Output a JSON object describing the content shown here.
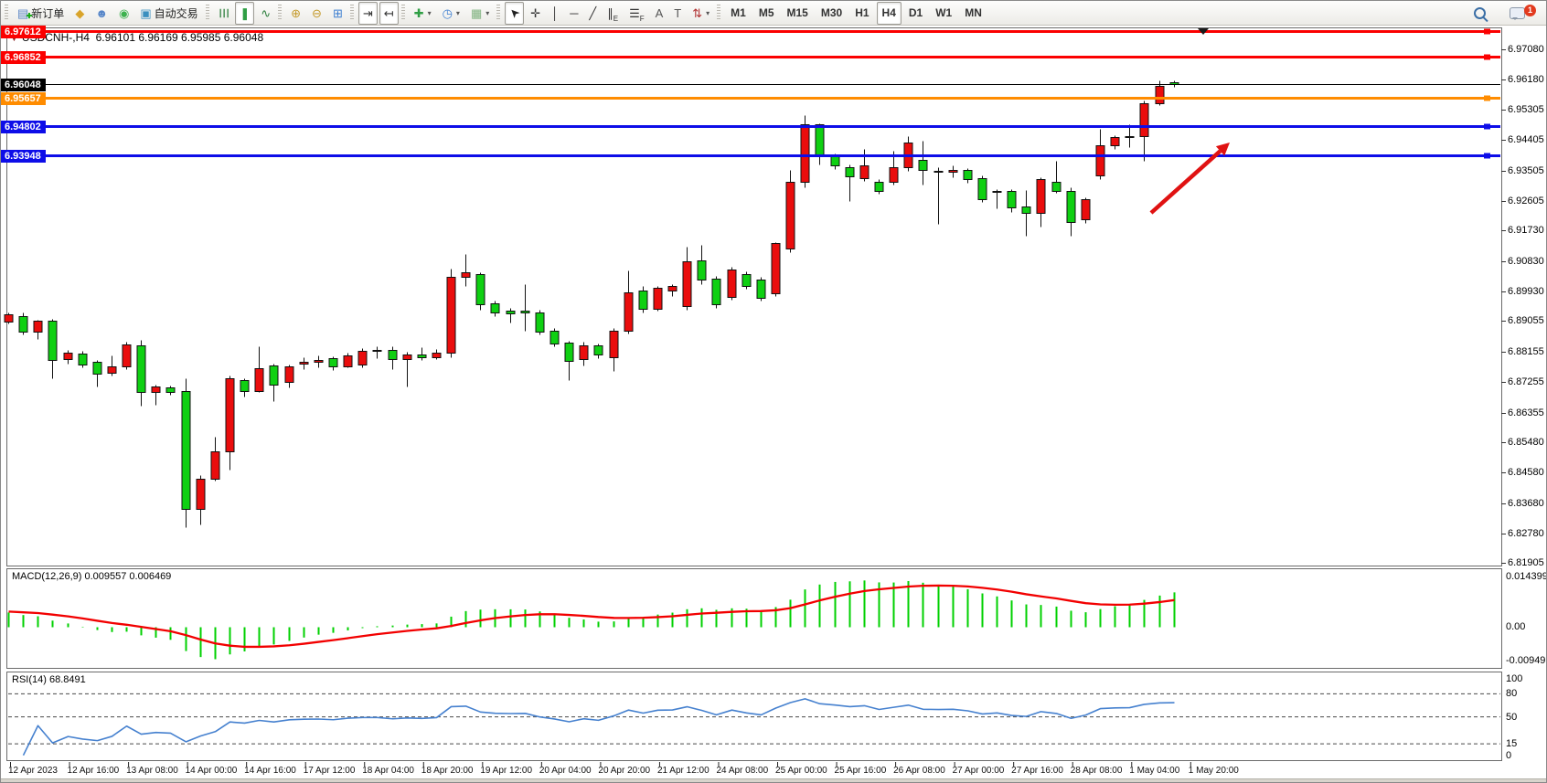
{
  "toolbar": {
    "notification_count": "1",
    "groups": [
      {
        "name": "trade",
        "items": [
          {
            "name": "new-order-button",
            "icon": "new-order-icon",
            "glyph": "▤",
            "color": "#5b86c5",
            "plus": true,
            "label": "新订单"
          },
          {
            "name": "metaeditor-button",
            "icon": "brush-icon",
            "glyph": "◆",
            "color": "#d9a42a"
          },
          {
            "name": "algo-user-button",
            "icon": "user-icon",
            "glyph": "☻",
            "color": "#5585c8"
          },
          {
            "name": "signals-button",
            "icon": "signal-icon",
            "glyph": "◉",
            "color": "#3db24e"
          },
          {
            "name": "autotrading-button",
            "icon": "autotrading-icon",
            "glyph": "▣",
            "color": "#3a8fbf",
            "label": "自动交易"
          }
        ]
      },
      {
        "name": "chart-type",
        "items": [
          {
            "name": "bar-chart-button",
            "icon": "bar-chart-icon",
            "glyph": "☰",
            "color": "#2a7d3a",
            "rot": 90
          },
          {
            "name": "candlestick-button",
            "icon": "candlestick-icon",
            "glyph": "❚",
            "color": "#2f9e44",
            "active": true
          },
          {
            "name": "line-chart-button",
            "icon": "line-chart-icon",
            "glyph": "∿",
            "color": "#2a7d3a"
          }
        ]
      },
      {
        "name": "zoom",
        "items": [
          {
            "name": "zoom-in-button",
            "icon": "zoom-in-icon",
            "glyph": "⊕",
            "color": "#c49a2a"
          },
          {
            "name": "zoom-out-button",
            "icon": "zoom-out-icon",
            "glyph": "⊖",
            "color": "#c49a2a"
          },
          {
            "name": "tile-windows-button",
            "icon": "tile-windows-icon",
            "glyph": "⊞",
            "color": "#3d7fd1"
          }
        ]
      },
      {
        "name": "scroll",
        "items": [
          {
            "name": "auto-scroll-button",
            "icon": "auto-scroll-icon",
            "glyph": "⇥",
            "color": "#333",
            "active": true
          },
          {
            "name": "chart-shift-button",
            "icon": "chart-shift-icon",
            "glyph": "↤",
            "color": "#333",
            "active": true
          }
        ]
      },
      {
        "name": "insert",
        "items": [
          {
            "name": "indicators-button",
            "icon": "indicators-icon",
            "glyph": "✚",
            "color": "#2f9e44",
            "dropdown": true
          },
          {
            "name": "periods-button",
            "icon": "clock-icon",
            "glyph": "◷",
            "color": "#3d7fd1",
            "dropdown": true
          },
          {
            "name": "templates-button",
            "icon": "template-chart-icon",
            "glyph": "▦",
            "color": "#7fb27f",
            "dropdown": true
          }
        ]
      },
      {
        "name": "tools",
        "items": [
          {
            "name": "cursor-button",
            "icon": "cursor-icon",
            "glyph": "➤",
            "color": "#222",
            "rot": -135,
            "active": true
          },
          {
            "name": "crosshair-button",
            "icon": "crosshair-icon",
            "glyph": "✛",
            "color": "#333"
          },
          {
            "name": "vertical-line-button",
            "icon": "vertical-line-icon",
            "glyph": "│",
            "color": "#333"
          },
          {
            "name": "horizontal-line-button",
            "icon": "horizontal-line-icon",
            "glyph": "─",
            "color": "#333"
          },
          {
            "name": "trendline-button",
            "icon": "trendline-icon",
            "glyph": "╱",
            "color": "#333"
          },
          {
            "name": "channel-button",
            "icon": "channel-icon",
            "glyph": "∥",
            "sub": "E",
            "color": "#333"
          },
          {
            "name": "fibonacci-button",
            "icon": "fibonacci-icon",
            "glyph": "☰",
            "sub": "F",
            "color": "#333"
          },
          {
            "name": "text-button",
            "icon": "text-icon",
            "glyph": "A",
            "color": "#555"
          },
          {
            "name": "label-button",
            "icon": "text-label-icon",
            "glyph": "T",
            "color": "#555"
          },
          {
            "name": "arrows-button",
            "icon": "arrows-icon",
            "glyph": "⇅",
            "color": "#b03030",
            "dropdown": true
          }
        ]
      },
      {
        "name": "timeframes",
        "items": [
          {
            "name": "tf-m1-button",
            "label": "M1",
            "tf": true
          },
          {
            "name": "tf-m5-button",
            "label": "M5",
            "tf": true
          },
          {
            "name": "tf-m15-button",
            "label": "M15",
            "tf": true
          },
          {
            "name": "tf-m30-button",
            "label": "M30",
            "tf": true
          },
          {
            "name": "tf-h1-button",
            "label": "H1",
            "tf": true
          },
          {
            "name": "tf-h4-button",
            "label": "H4",
            "tf": true,
            "active": true
          },
          {
            "name": "tf-d1-button",
            "label": "D1",
            "tf": true
          },
          {
            "name": "tf-w1-button",
            "label": "W1",
            "tf": true
          },
          {
            "name": "tf-mn-button",
            "label": "MN",
            "tf": true
          }
        ]
      }
    ]
  },
  "chart": {
    "title": "USDCNH-,H4",
    "ohlc": "6.96101 6.96169 6.95985 6.96048",
    "title_icon": "▼"
  },
  "indicators": {
    "macd": {
      "label": "MACD(12,26,9)",
      "values_text": "0.009557 0.006469",
      "axis": [
        "0.014399",
        "0.00",
        "-0.009491"
      ],
      "histogram_color": "#00d000",
      "signal_color": "#f20000"
    },
    "rsi": {
      "label": "RSI(14)",
      "value_text": "68.8491",
      "axis": [
        "100",
        "80",
        "50",
        "15",
        "0"
      ],
      "levels": [
        80,
        50,
        15
      ],
      "line_color": "#4681cf"
    }
  },
  "chart_data": {
    "type": "candlestick",
    "symbol": "USDCNH-",
    "timeframe": "H4",
    "current_ohlc": {
      "open": "6.96101",
      "high": "6.96169",
      "low": "6.95985",
      "close": "6.96048"
    },
    "colors": {
      "bull": "#ea0d0d",
      "bear": "#0fd012",
      "wick": "#111111"
    },
    "y_axis_ticks": [
      6.9708,
      6.9618,
      6.95305,
      6.94405,
      6.93505,
      6.92605,
      6.9173,
      6.9083,
      6.8993,
      6.89055,
      6.88155,
      6.87255,
      6.86355,
      6.8548,
      6.8458,
      6.8368,
      6.8278,
      6.81905
    ],
    "horizontal_lines": [
      {
        "price": 6.97612,
        "color": "#fb0000",
        "width": 3,
        "label": "6.97612"
      },
      {
        "price": 6.96852,
        "color": "#fb0000",
        "width": 3,
        "label": "6.96852"
      },
      {
        "price": 6.96048,
        "color": "#000000",
        "width": 1,
        "label": "6.96048"
      },
      {
        "price": 6.95657,
        "color": "#ff8c00",
        "width": 3,
        "label": "6.95657"
      },
      {
        "price": 6.94802,
        "color": "#0d0de8",
        "width": 3,
        "label": "6.94802"
      },
      {
        "price": 6.93948,
        "color": "#0d0de8",
        "width": 3,
        "label": "6.93948"
      }
    ],
    "x_axis_labels": [
      "12 Apr 2023",
      "12 Apr 16:00",
      "13 Apr 08:00",
      "14 Apr 00:00",
      "14 Apr 16:00",
      "17 Apr 12:00",
      "18 Apr 04:00",
      "18 Apr 20:00",
      "19 Apr 12:00",
      "20 Apr 04:00",
      "20 Apr 20:00",
      "21 Apr 12:00",
      "24 Apr 08:00",
      "25 Apr 00:00",
      "25 Apr 16:00",
      "26 Apr 08:00",
      "27 Apr 00:00",
      "27 Apr 16:00",
      "28 Apr 08:00",
      "1 May 04:00",
      "1 May 20:00"
    ],
    "candles": [
      [
        6.8904,
        6.893,
        6.8898,
        6.8926
      ],
      [
        6.8921,
        6.8932,
        6.8867,
        6.8875
      ],
      [
        6.8875,
        6.891,
        6.8853,
        6.8907
      ],
      [
        6.8907,
        6.8912,
        6.8737,
        6.8791
      ],
      [
        6.8794,
        6.882,
        6.878,
        6.8813
      ],
      [
        6.881,
        6.8818,
        6.877,
        6.8778
      ],
      [
        6.8786,
        6.879,
        6.8713,
        6.8751
      ],
      [
        6.8753,
        6.8805,
        6.8745,
        6.8772
      ],
      [
        6.8772,
        6.8845,
        6.8765,
        6.8837
      ],
      [
        6.8834,
        6.885,
        6.8656,
        6.8696
      ],
      [
        6.8696,
        6.8718,
        6.8659,
        6.8712
      ],
      [
        6.8709,
        6.8715,
        6.8688,
        6.8696
      ],
      [
        6.8699,
        6.8737,
        6.8297,
        6.8351
      ],
      [
        6.8351,
        6.845,
        6.8306,
        6.8441
      ],
      [
        6.8441,
        6.8565,
        6.8435,
        6.852
      ],
      [
        6.852,
        6.8745,
        6.8467,
        6.8737
      ],
      [
        6.8731,
        6.8737,
        6.8683,
        6.8699
      ],
      [
        6.8699,
        6.8831,
        6.8695,
        6.8767
      ],
      [
        6.8775,
        6.878,
        6.8669,
        6.8718
      ],
      [
        6.8725,
        6.8778,
        6.871,
        6.8772
      ],
      [
        6.878,
        6.88,
        6.8765,
        6.8786
      ],
      [
        6.8786,
        6.8805,
        6.877,
        6.879
      ],
      [
        6.8796,
        6.8802,
        6.876,
        6.8773
      ],
      [
        6.8773,
        6.8812,
        6.8768,
        6.8805
      ],
      [
        6.8778,
        6.8825,
        6.877,
        6.8818
      ],
      [
        6.8818,
        6.883,
        6.8795,
        6.882
      ],
      [
        6.882,
        6.8832,
        6.8764,
        6.8794
      ],
      [
        6.8794,
        6.8815,
        6.8713,
        6.8808
      ],
      [
        6.8808,
        6.8828,
        6.879,
        6.88
      ],
      [
        6.88,
        6.8822,
        6.8792,
        6.8813
      ],
      [
        6.8813,
        6.906,
        6.8798,
        6.9035
      ],
      [
        6.9035,
        6.9103,
        6.901,
        6.9049
      ],
      [
        6.9043,
        6.905,
        6.894,
        6.8954
      ],
      [
        6.8957,
        6.8965,
        6.892,
        6.8932
      ],
      [
        6.8935,
        6.8945,
        6.89,
        6.8927
      ],
      [
        6.8935,
        6.9014,
        6.8878,
        6.893
      ],
      [
        6.8932,
        6.894,
        6.8865,
        6.8873
      ],
      [
        6.8878,
        6.8885,
        6.883,
        6.8838
      ],
      [
        6.8841,
        6.8848,
        6.873,
        6.8787
      ],
      [
        6.8793,
        6.8845,
        6.8775,
        6.8833
      ],
      [
        6.8833,
        6.884,
        6.8795,
        6.8806
      ],
      [
        6.88,
        6.8885,
        6.8757,
        6.8878
      ],
      [
        6.8878,
        6.9054,
        6.887,
        6.899
      ],
      [
        6.8995,
        6.901,
        6.893,
        6.8941
      ],
      [
        6.8941,
        6.901,
        6.8935,
        6.9003
      ],
      [
        6.8995,
        6.9015,
        6.898,
        6.9008
      ],
      [
        6.8949,
        6.9124,
        6.894,
        6.9081
      ],
      [
        6.9084,
        6.913,
        6.9015,
        6.9027
      ],
      [
        6.903,
        6.904,
        6.8945,
        6.8954
      ],
      [
        6.8976,
        6.9065,
        6.897,
        6.9057
      ],
      [
        6.9043,
        6.9052,
        6.9,
        6.9008
      ],
      [
        6.9027,
        6.9035,
        6.8965,
        6.8973
      ],
      [
        6.8987,
        6.914,
        6.898,
        6.9135
      ],
      [
        6.9121,
        6.9353,
        6.911,
        6.9318
      ],
      [
        6.9318,
        6.9515,
        6.93,
        6.9488
      ],
      [
        6.9486,
        6.949,
        6.9368,
        6.9392
      ],
      [
        6.9392,
        6.94,
        6.9355,
        6.9365
      ],
      [
        6.9359,
        6.9368,
        6.9259,
        6.9332
      ],
      [
        6.9327,
        6.9413,
        6.932,
        6.9365
      ],
      [
        6.9318,
        6.9325,
        6.9282,
        6.9291
      ],
      [
        6.9318,
        6.9408,
        6.931,
        6.9359
      ],
      [
        6.9359,
        6.9453,
        6.935,
        6.9432
      ],
      [
        6.9381,
        6.9438,
        6.931,
        6.9351
      ],
      [
        6.935,
        6.936,
        6.9192,
        6.9346
      ],
      [
        6.9346,
        6.9365,
        6.933,
        6.9352
      ],
      [
        6.9351,
        6.9358,
        6.9315,
        6.9324
      ],
      [
        6.9327,
        6.9335,
        6.9258,
        6.9265
      ],
      [
        6.9286,
        6.9296,
        6.9238,
        6.9289
      ],
      [
        6.9289,
        6.9295,
        6.9228,
        6.9242
      ],
      [
        6.9245,
        6.9292,
        6.9157,
        6.9224
      ],
      [
        6.9224,
        6.933,
        6.9184,
        6.9324
      ],
      [
        6.9318,
        6.9378,
        6.9285,
        6.9291
      ],
      [
        6.9291,
        6.93,
        6.9157,
        6.9197
      ],
      [
        6.9206,
        6.927,
        6.9195,
        6.9265
      ],
      [
        6.9337,
        6.9472,
        6.9324,
        6.9426
      ],
      [
        6.9426,
        6.9455,
        6.9415,
        6.9448
      ],
      [
        6.9451,
        6.9486,
        6.9418,
        6.9453
      ],
      [
        6.9453,
        6.9558,
        6.9378,
        6.955
      ],
      [
        6.955,
        6.9615,
        6.9543,
        6.9599
      ],
      [
        6.96101,
        6.96169,
        6.95985,
        6.96048
      ]
    ],
    "annotations": [
      {
        "type": "arrow",
        "color": "#e01212",
        "from": [
          1258,
          232
        ],
        "to": [
          1344,
          155
        ]
      }
    ]
  }
}
